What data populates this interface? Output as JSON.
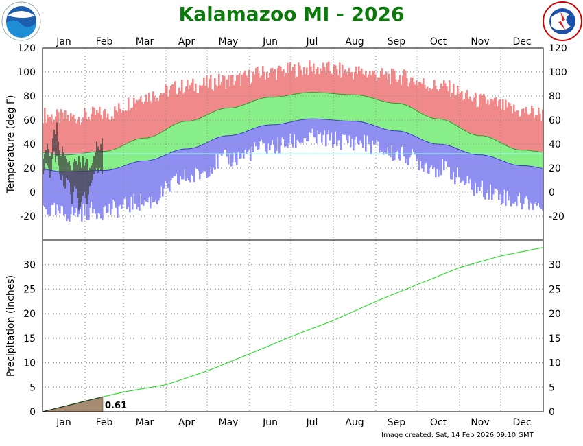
{
  "title": "Kalamazoo MI - 2026",
  "created": "Image created: Sat, 14 Feb 2026 09:10 GMT",
  "colors": {
    "title": "#0b7a0b",
    "record_range": "#f08a8a",
    "normal_range": "#88ee88",
    "low_range": "#8f8ff2",
    "observed": "#3d3d3d",
    "precip_normal": "#33dd33",
    "precip_observed": "#a68b73"
  },
  "icons": {
    "left_logo": "noaa-logo",
    "right_logo": "nws-logo"
  },
  "chart_data": [
    {
      "type": "area",
      "name": "temperature",
      "ylabel": "Temperature (deg F)",
      "ylim": [
        -40,
        120
      ],
      "y_ticks": [
        "120",
        "100",
        "80",
        "60",
        "40",
        "20",
        "0",
        "-20"
      ],
      "x_ticks": [
        "Jan",
        "Feb",
        "Mar",
        "Apr",
        "May",
        "Jun",
        "Jul",
        "Aug",
        "Sep",
        "Oct",
        "Nov",
        "Dec"
      ],
      "grid": true,
      "normal_high_by_month": [
        31,
        34,
        45,
        59,
        70,
        79,
        83,
        81,
        74,
        61,
        47,
        35
      ],
      "normal_low_by_month": [
        17,
        18,
        26,
        36,
        47,
        56,
        61,
        59,
        51,
        40,
        31,
        22
      ],
      "record_high_by_month": [
        62,
        65,
        80,
        88,
        93,
        100,
        103,
        100,
        96,
        88,
        76,
        67
      ],
      "record_low_by_month": [
        -18,
        -15,
        -8,
        12,
        28,
        38,
        45,
        42,
        32,
        20,
        2,
        -8
      ],
      "observed_highs_to_date": [
        28,
        32,
        35,
        40,
        36,
        30,
        33,
        45,
        52,
        48,
        58,
        42,
        35,
        30,
        38,
        33,
        30,
        28,
        25,
        26,
        22,
        18,
        25,
        28,
        26,
        23,
        30,
        25,
        20,
        30,
        22,
        25,
        28,
        18,
        20,
        22,
        24,
        30,
        33,
        42,
        38,
        35,
        40,
        45
      ],
      "observed_lows_to_date": [
        15,
        18,
        24,
        22,
        20,
        12,
        18,
        28,
        34,
        25,
        30,
        22,
        15,
        10,
        14,
        5,
        3,
        12,
        10,
        8,
        -2,
        -10,
        0,
        5,
        3,
        -5,
        -15,
        -12,
        -8,
        -3,
        0,
        -5,
        -10,
        -2,
        5,
        8,
        10,
        15,
        18,
        20,
        16,
        20,
        18,
        15
      ]
    },
    {
      "type": "line",
      "name": "precipitation",
      "ylabel": "Precipitation (inches)",
      "ylim": [
        0,
        35
      ],
      "y_ticks": [
        "30",
        "25",
        "20",
        "15",
        "10",
        "5",
        "0"
      ],
      "x_ticks": [
        "Jan",
        "Feb",
        "Mar",
        "Apr",
        "May",
        "Jun",
        "Jul",
        "Aug",
        "Sep",
        "Oct",
        "Nov",
        "Dec"
      ],
      "grid": true,
      "normal_cumulative_end_of_month": [
        2.2,
        4.0,
        5.5,
        8.3,
        11.8,
        15.3,
        18.6,
        22.5,
        25.9,
        29.4,
        31.8,
        33.5
      ],
      "observed_to_date_label": "0.61",
      "observed_to_date": 0.61
    }
  ]
}
